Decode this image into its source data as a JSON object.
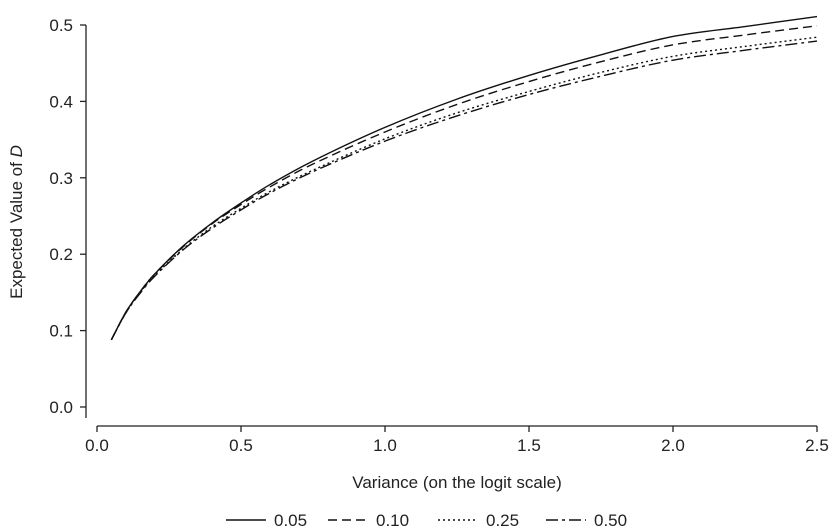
{
  "chart_data": {
    "type": "line",
    "title": "",
    "xlabel": "Variance (on the logit scale)",
    "ylabel_prefix": "Expected Value of ",
    "ylabel_var": "D",
    "xlim": [
      0,
      2.5
    ],
    "ylim": [
      0,
      0.5
    ],
    "x_ticks": [
      {
        "value": 0.0,
        "label": "0.0"
      },
      {
        "value": 0.5,
        "label": "0.5"
      },
      {
        "value": 1.0,
        "label": "1.0"
      },
      {
        "value": 1.5,
        "label": "1.5"
      },
      {
        "value": 2.0,
        "label": "2.0"
      },
      {
        "value": 2.5,
        "label": "2.5"
      }
    ],
    "y_ticks": [
      {
        "value": 0.0,
        "label": "0.0"
      },
      {
        "value": 0.1,
        "label": "0.1"
      },
      {
        "value": 0.2,
        "label": "0.2"
      },
      {
        "value": 0.3,
        "label": "0.3"
      },
      {
        "value": 0.4,
        "label": "0.4"
      },
      {
        "value": 0.5,
        "label": "0.5"
      }
    ],
    "grid": false,
    "legend_position": "bottom",
    "x": [
      0.05,
      0.1,
      0.15,
      0.2,
      0.3,
      0.4,
      0.5,
      0.6,
      0.75,
      1.0,
      1.25,
      1.5,
      1.75,
      2.0,
      2.25,
      2.5
    ],
    "series": [
      {
        "name": "0.05",
        "dash": "solid",
        "values": [
          0.088,
          0.124,
          0.151,
          0.174,
          0.211,
          0.241,
          0.267,
          0.291,
          0.322,
          0.366,
          0.403,
          0.434,
          0.461,
          0.485,
          0.498,
          0.511
        ]
      },
      {
        "name": "0.10",
        "dash": "dashed",
        "values": [
          0.088,
          0.124,
          0.151,
          0.174,
          0.21,
          0.24,
          0.265,
          0.288,
          0.318,
          0.36,
          0.396,
          0.426,
          0.452,
          0.474,
          0.487,
          0.499
        ]
      },
      {
        "name": "0.25",
        "dash": "dotted",
        "values": [
          0.088,
          0.123,
          0.15,
          0.172,
          0.207,
          0.236,
          0.26,
          0.282,
          0.31,
          0.351,
          0.385,
          0.413,
          0.438,
          0.459,
          0.472,
          0.484
        ]
      },
      {
        "name": "0.50",
        "dash": "dashdot",
        "values": [
          0.088,
          0.123,
          0.149,
          0.171,
          0.206,
          0.234,
          0.258,
          0.28,
          0.308,
          0.348,
          0.381,
          0.409,
          0.433,
          0.454,
          0.467,
          0.479
        ]
      }
    ]
  }
}
